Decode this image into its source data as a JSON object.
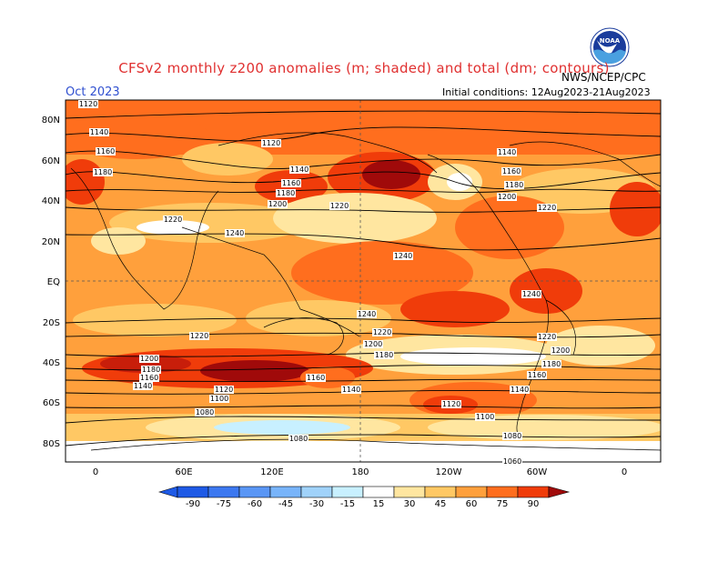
{
  "header": {
    "title": "CFSv2 monthly z200 anomalies (m; shaded) and total (dm; contours)",
    "month": "Oct 2023",
    "initial_conditions": "Initial conditions: 12Aug2023-21Aug2023",
    "agency": "NWS/NCEP/CPC",
    "logo_text": "NOAA"
  },
  "axes": {
    "lat_labels": [
      "80N",
      "60N",
      "40N",
      "20N",
      "EQ",
      "20S",
      "40S",
      "60S",
      "80S"
    ],
    "lon_labels": [
      "0",
      "60E",
      "120E",
      "180",
      "120W",
      "60W",
      "0"
    ]
  },
  "colorbar": {
    "labels": [
      "-90",
      "-75",
      "-60",
      "-45",
      "-30",
      "-15",
      "15",
      "30",
      "45",
      "60",
      "75",
      "90"
    ],
    "colors": [
      "#1e5ae6",
      "#3c78f0",
      "#5a96f5",
      "#78b4fa",
      "#a0d2fa",
      "#c8f0ff",
      "#ffffff",
      "#ffe6a0",
      "#ffc864",
      "#ffa03c",
      "#ff6e1e",
      "#f03c0a",
      "#c81e0a",
      "#a00a0a"
    ]
  },
  "contour_labels": [
    "1120",
    "1140",
    "1160",
    "1180",
    "1200",
    "1220",
    "1240",
    "1080",
    "1100",
    "1060"
  ]
}
